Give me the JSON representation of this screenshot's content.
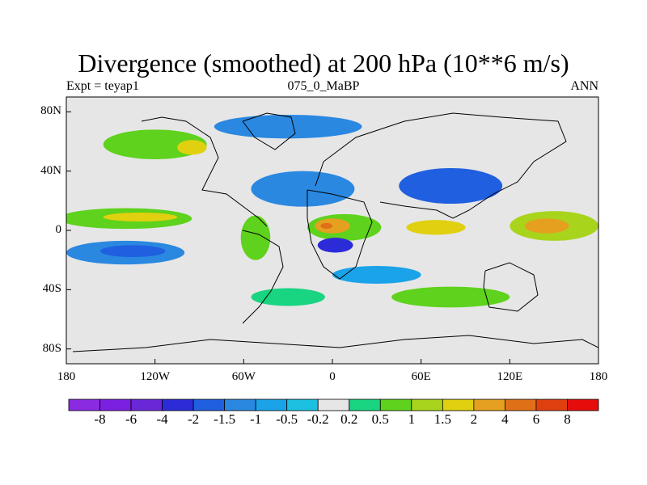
{
  "title": "Divergence (smoothed) at 200 hPa (10**6 m/s)",
  "left_subtitle": "Expt = teyap1",
  "center_subtitle": "075_0_MaBP",
  "right_subtitle": "ANN",
  "map": {
    "lon_range": [
      -180,
      180
    ],
    "lat_range": [
      -90,
      90
    ],
    "ocean_color": "#e6e6e6",
    "y_ticks": [
      {
        "label": "80N",
        "lat": 80
      },
      {
        "label": "40N",
        "lat": 40
      },
      {
        "label": "0",
        "lat": 0
      },
      {
        "label": "40S",
        "lat": -40
      },
      {
        "label": "80S",
        "lat": -80
      }
    ],
    "x_ticks": [
      {
        "label": "180",
        "lon": -180
      },
      {
        "label": "120W",
        "lon": -120
      },
      {
        "label": "60W",
        "lon": -60
      },
      {
        "label": "0",
        "lon": 0
      },
      {
        "label": "60E",
        "lon": 60
      },
      {
        "label": "120E",
        "lon": 120
      },
      {
        "label": "180",
        "lon": 180
      }
    ],
    "fields": [
      {
        "name": "north-pacific-divergence",
        "lon": -120,
        "lat": 58,
        "rx": 35,
        "ry": 10,
        "level": 1
      },
      {
        "name": "north-pacific-core",
        "lon": -95,
        "lat": 56,
        "rx": 10,
        "ry": 5,
        "level": 2
      },
      {
        "name": "arctic-convergence",
        "lon": -30,
        "lat": 70,
        "rx": 50,
        "ry": 8,
        "level": -1
      },
      {
        "name": "east-pacific-divergence",
        "lon": -140,
        "lat": 8,
        "rx": 45,
        "ry": 7,
        "level": 1
      },
      {
        "name": "east-pacific-core",
        "lon": -130,
        "lat": 9,
        "rx": 25,
        "ry": 3,
        "level": 2
      },
      {
        "name": "south-pacific-convergence",
        "lon": -140,
        "lat": -15,
        "rx": 40,
        "ry": 8,
        "level": -1
      },
      {
        "name": "south-pacific-core",
        "lon": -135,
        "lat": -14,
        "rx": 22,
        "ry": 4,
        "level": -1.5
      },
      {
        "name": "atlantic-convergence",
        "lon": -20,
        "lat": 28,
        "rx": 35,
        "ry": 12,
        "level": -1
      },
      {
        "name": "africa-divergence",
        "lon": 8,
        "lat": 2,
        "rx": 25,
        "ry": 9,
        "level": 1
      },
      {
        "name": "africa-core",
        "lon": 0,
        "lat": 3,
        "rx": 12,
        "ry": 5,
        "level": 4
      },
      {
        "name": "africa-peak",
        "lon": -4,
        "lat": 3,
        "rx": 4,
        "ry": 2,
        "level": 6
      },
      {
        "name": "africa-south-convergence",
        "lon": 2,
        "lat": -10,
        "rx": 12,
        "ry": 5,
        "level": -2
      },
      {
        "name": "south-america-divergence",
        "lon": -52,
        "lat": -5,
        "rx": 10,
        "ry": 15,
        "level": 1
      },
      {
        "name": "indian-ocean-divergence",
        "lon": 70,
        "lat": 2,
        "rx": 20,
        "ry": 5,
        "level": 2
      },
      {
        "name": "asia-convergence",
        "lon": 80,
        "lat": 30,
        "rx": 35,
        "ry": 12,
        "level": -1.5
      },
      {
        "name": "west-pacific-divergence",
        "lon": 150,
        "lat": 3,
        "rx": 30,
        "ry": 10,
        "level": 1.5
      },
      {
        "name": "west-pacific-core",
        "lon": 145,
        "lat": 3,
        "rx": 15,
        "ry": 5,
        "level": 4
      },
      {
        "name": "southern-divergence",
        "lon": 80,
        "lat": -45,
        "rx": 40,
        "ry": 7,
        "level": 1
      },
      {
        "name": "south-atlantic-divergence",
        "lon": -30,
        "lat": -45,
        "rx": 25,
        "ry": 6,
        "level": 0.5
      },
      {
        "name": "antarctic-convergence",
        "lon": 30,
        "lat": -30,
        "rx": 30,
        "ry": 6,
        "level": -0.5
      }
    ]
  },
  "colorbar": {
    "colors": [
      "#8a2be2",
      "#7b1fe0",
      "#6a27d8",
      "#2b2bd8",
      "#1f5fe0",
      "#2a88e0",
      "#1aa3e8",
      "#1cc0e0",
      "#e6e6e6",
      "#19d480",
      "#5ed21c",
      "#a8d41c",
      "#e0d010",
      "#e6a020",
      "#e07018",
      "#e04010",
      "#e60c0c"
    ],
    "labels": [
      "-8",
      "-6",
      "-4",
      "-2",
      "-1.5",
      "-1",
      "-0.5",
      "-0.2",
      "0.2",
      "0.5",
      "1",
      "1.5",
      "2",
      "4",
      "6",
      "8"
    ]
  }
}
